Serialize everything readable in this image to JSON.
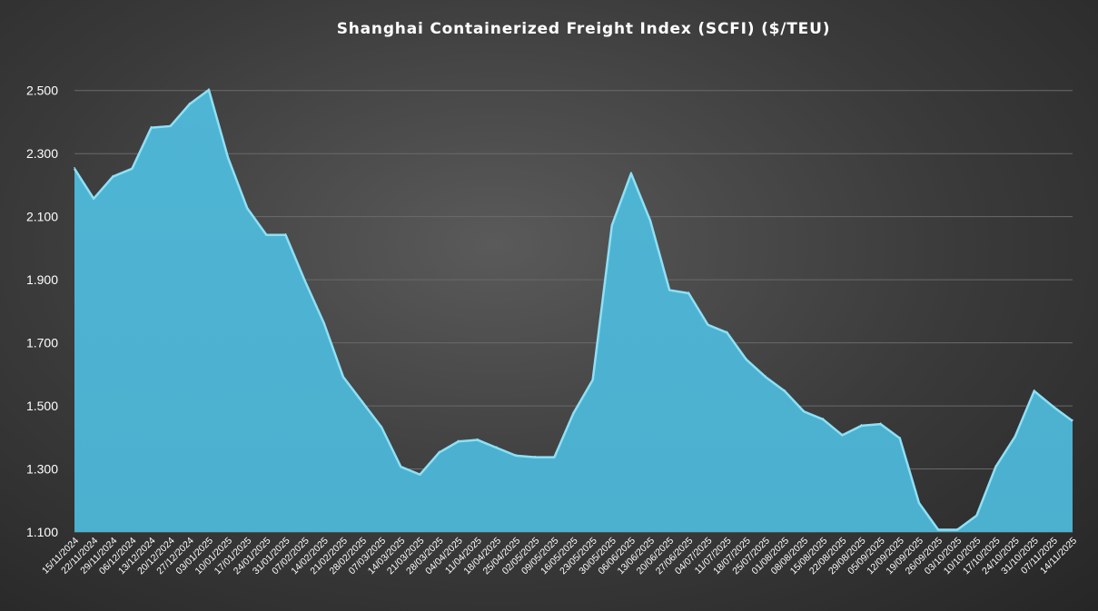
{
  "chart_data": {
    "type": "area",
    "title": "Shanghai Containerized Freight Index (SCFI) ($/TEU)",
    "xlabel": "",
    "ylabel": "",
    "ylim": [
      1100,
      2600
    ],
    "yticks": [
      1100,
      1300,
      1500,
      1700,
      1900,
      2100,
      2300,
      2500
    ],
    "ytick_labels": [
      "1.100",
      "1.300",
      "1.500",
      "1.700",
      "1.900",
      "2.100",
      "2.300",
      "2.500"
    ],
    "grid": true,
    "fill_color": "#4fb5d4",
    "edge_color": "#8fe0f5",
    "categories": [
      "15/11/2024",
      "22/11/2024",
      "29/11/2024",
      "06/12/2024",
      "13/12/2024",
      "20/12/2024",
      "27/12/2024",
      "03/01/2025",
      "10/01/2025",
      "17/01/2025",
      "24/01/2025",
      "31/01/2025",
      "07/02/2025",
      "14/02/2025",
      "21/02/2025",
      "28/02/2025",
      "07/03/2025",
      "14/03/2025",
      "21/03/2025",
      "28/03/2025",
      "04/04/2025",
      "11/04/2025",
      "18/04/2025",
      "25/04/2025",
      "02/05/2025",
      "09/05/2025",
      "16/05/2025",
      "23/05/2025",
      "30/05/2025",
      "06/06/2025",
      "13/06/2025",
      "20/06/2025",
      "27/06/2025",
      "04/07/2025",
      "11/07/2025",
      "18/07/2025",
      "25/07/2025",
      "01/08/2025",
      "08/08/2025",
      "15/08/2025",
      "22/08/2025",
      "29/08/2025",
      "05/09/2025",
      "12/09/2025",
      "19/09/2025",
      "26/09/2025",
      "03/10/2025",
      "10/10/2025",
      "17/10/2025",
      "24/10/2025",
      "31/10/2025",
      "07/11/2025",
      "14/11/2025"
    ],
    "series": [
      {
        "values": [
          2255,
          2160,
          2230,
          2255,
          2385,
          2390,
          2460,
          2505,
          2290,
          2130,
          2045,
          2045,
          1900,
          1765,
          1595,
          1515,
          1435,
          1310,
          1285,
          1355,
          1390,
          1395,
          1370,
          1345,
          1340,
          1340,
          1480,
          1585,
          2075,
          2240,
          2090,
          1870,
          1860,
          1760,
          1735,
          1650,
          1595,
          1550,
          1485,
          1460,
          1410,
          1440,
          1445,
          1400,
          1195,
          1110,
          1110,
          1155,
          1310,
          1405,
          1550,
          1500,
          1455
        ]
      }
    ]
  }
}
